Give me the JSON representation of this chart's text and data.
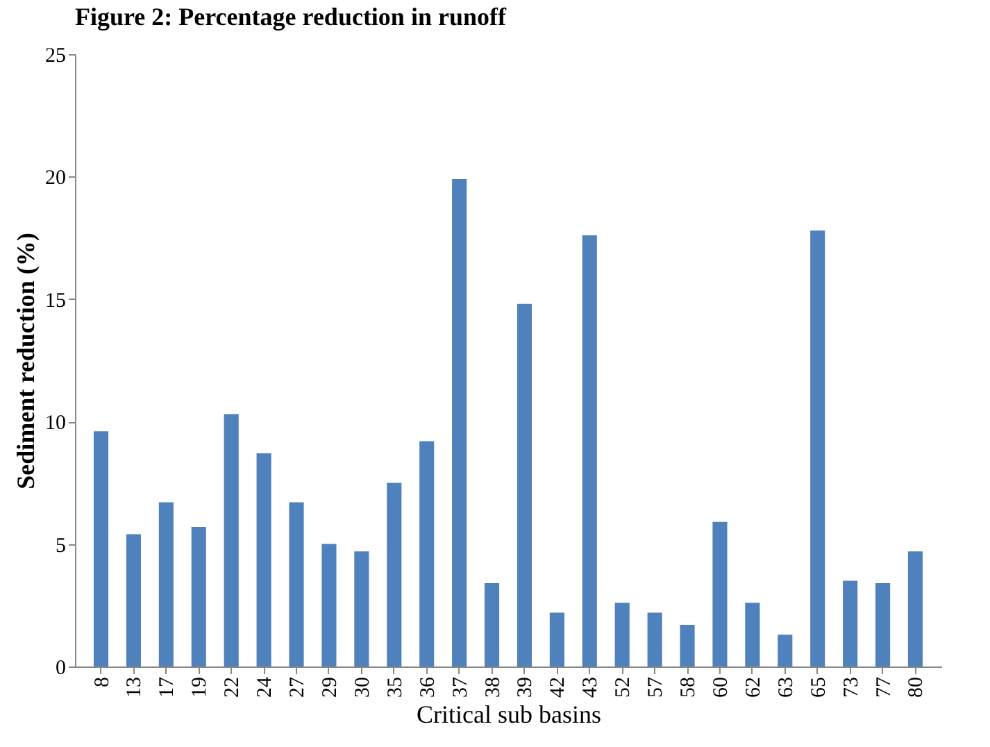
{
  "chart_data": {
    "type": "bar",
    "title": "Figure 2: Percentage reduction in runoff",
    "xlabel": "Critical sub basins",
    "ylabel": "Sediment reduction (%)",
    "categories": [
      "8",
      "13",
      "17",
      "19",
      "22",
      "24",
      "27",
      "29",
      "30",
      "35",
      "36",
      "37",
      "38",
      "39",
      "42",
      "43",
      "52",
      "57",
      "58",
      "60",
      "62",
      "63",
      "65",
      "73",
      "77",
      "80"
    ],
    "values": [
      9.6,
      5.4,
      6.7,
      5.7,
      10.3,
      8.7,
      6.7,
      5.0,
      4.7,
      7.5,
      9.2,
      19.9,
      3.4,
      14.8,
      2.2,
      17.6,
      2.6,
      2.2,
      1.7,
      5.9,
      2.6,
      1.3,
      17.8,
      3.5,
      3.4,
      4.7
    ],
    "color": "#4f81bd",
    "ylim": [
      0,
      25
    ],
    "yticks": [
      0,
      5,
      10,
      15,
      20,
      25
    ],
    "grid": false
  }
}
